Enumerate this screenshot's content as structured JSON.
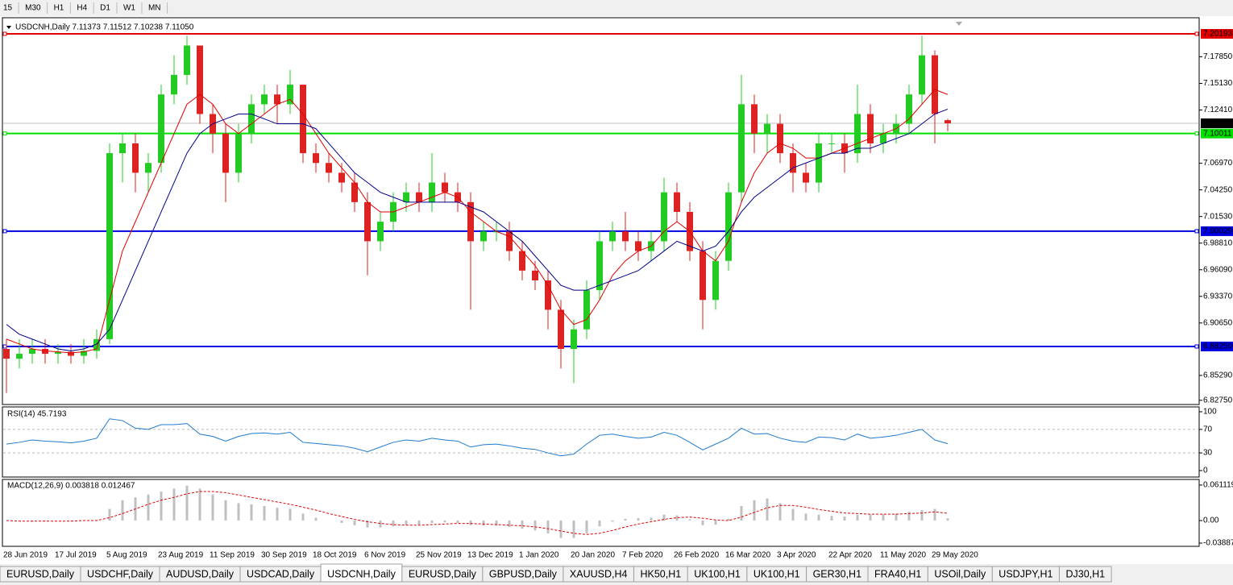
{
  "toolbar": {
    "timeframes": [
      "15",
      "M30",
      "H1",
      "H4",
      "D1",
      "W1",
      "MN"
    ]
  },
  "chart_data": [
    {
      "type": "candlestick",
      "title": "USDCNH,Daily  7.11373 7.11512 7.10238 7.11050",
      "categories": [
        "28 Jun 2019",
        null,
        null,
        null,
        "17 Jul 2019",
        null,
        null,
        null,
        "5 Aug 2019",
        null,
        null,
        null,
        "23 Aug 2019",
        null,
        null,
        null,
        "11 Sep 2019",
        null,
        null,
        null,
        "30 Sep 2019",
        null,
        null,
        null,
        "18 Oct 2019",
        null,
        null,
        null,
        "6 Nov 2019",
        null,
        null,
        null,
        "25 Nov 2019",
        null,
        null,
        null,
        "13 Dec 2019",
        null,
        null,
        null,
        "1 Jan 2020",
        null,
        null,
        null,
        "20 Jan 2020",
        null,
        null,
        null,
        "7 Feb 2020",
        null,
        null,
        null,
        "26 Feb 2020",
        null,
        null,
        null,
        "16 Mar 2020",
        null,
        null,
        null,
        "3 Apr 2020",
        null,
        null,
        null,
        "22 Apr 2020",
        null,
        null,
        null,
        "11 May 2020",
        null,
        null,
        null,
        "29 May 2020",
        null
      ],
      "open": [
        6.88,
        6.87,
        6.875,
        6.88,
        6.875,
        6.877,
        6.873,
        6.878,
        6.89,
        7.08,
        7.09,
        7.06,
        7.07,
        7.14,
        7.16,
        7.19,
        7.12,
        7.1,
        7.06,
        7.1,
        7.13,
        7.14,
        7.13,
        7.15,
        7.08,
        7.07,
        7.06,
        7.05,
        7.03,
        6.99,
        7.01,
        7.03,
        7.04,
        7.03,
        7.05,
        7.04,
        7.03,
        6.99,
        7.0,
        7.0,
        6.98,
        6.96,
        6.95,
        6.92,
        6.88,
        6.9,
        6.94,
        6.99,
        7.0,
        6.99,
        6.98,
        6.99,
        7.04,
        7.02,
        6.98,
        6.93,
        6.97,
        7.04,
        7.13,
        7.1,
        7.11,
        7.08,
        7.06,
        7.05,
        7.09,
        7.09,
        7.08,
        7.12,
        7.09,
        7.1,
        7.11,
        7.14,
        7.18,
        7.11373
      ],
      "high": [
        6.89,
        6.89,
        6.89,
        6.89,
        6.885,
        6.885,
        6.89,
        6.9,
        7.09,
        7.1,
        7.1,
        7.08,
        7.15,
        7.18,
        7.2,
        7.19,
        7.13,
        7.11,
        7.11,
        7.14,
        7.15,
        7.15,
        7.165,
        7.15,
        7.09,
        7.08,
        7.07,
        7.06,
        7.04,
        7.02,
        7.04,
        7.05,
        7.05,
        7.08,
        7.06,
        7.05,
        7.04,
        7.01,
        7.01,
        7.01,
        6.99,
        6.97,
        6.96,
        6.93,
        6.91,
        6.95,
        7.0,
        7.01,
        7.02,
        7.0,
        7.0,
        7.055,
        7.05,
        7.03,
        6.99,
        6.98,
        7.05,
        7.16,
        7.14,
        7.12,
        7.12,
        7.09,
        7.07,
        7.1,
        7.1,
        7.1,
        7.15,
        7.13,
        7.11,
        7.12,
        7.15,
        7.2,
        7.185,
        7.11512
      ],
      "low": [
        6.835,
        6.86,
        6.865,
        6.865,
        6.865,
        6.865,
        6.865,
        6.87,
        6.885,
        7.05,
        7.04,
        7.04,
        7.06,
        7.13,
        7.15,
        7.11,
        7.08,
        7.03,
        7.05,
        7.09,
        7.12,
        7.11,
        7.12,
        7.07,
        7.06,
        7.05,
        7.04,
        7.02,
        6.955,
        6.98,
        7.0,
        7.02,
        7.02,
        7.02,
        7.03,
        7.02,
        6.92,
        6.98,
        6.99,
        6.97,
        6.95,
        6.94,
        6.9,
        6.86,
        6.845,
        6.89,
        6.93,
        6.98,
        6.98,
        6.97,
        6.97,
        6.98,
        7.01,
        6.97,
        6.9,
        6.92,
        6.96,
        7.03,
        7.08,
        7.08,
        7.07,
        7.04,
        7.04,
        7.04,
        7.08,
        7.06,
        7.07,
        7.08,
        7.08,
        7.09,
        7.1,
        7.13,
        7.09,
        7.10238
      ],
      "close": [
        6.87,
        6.875,
        6.88,
        6.875,
        6.877,
        6.873,
        6.878,
        6.89,
        7.08,
        7.09,
        7.06,
        7.07,
        7.14,
        7.16,
        7.19,
        7.12,
        7.1,
        7.06,
        7.1,
        7.13,
        7.14,
        7.13,
        7.15,
        7.08,
        7.07,
        7.06,
        7.05,
        7.03,
        6.99,
        7.01,
        7.03,
        7.04,
        7.03,
        7.05,
        7.04,
        7.03,
        6.99,
        7.0,
        7.0,
        6.98,
        6.96,
        6.95,
        6.92,
        6.88,
        6.9,
        6.94,
        6.99,
        7.0,
        6.99,
        6.98,
        6.99,
        7.04,
        7.02,
        6.98,
        6.93,
        6.97,
        7.04,
        7.13,
        7.1,
        7.11,
        7.08,
        7.06,
        7.05,
        7.09,
        7.09,
        7.08,
        7.12,
        7.09,
        7.1,
        7.11,
        7.14,
        7.18,
        7.12,
        7.1105
      ],
      "up_color": "#22cc22",
      "down_color": "#dd2222",
      "overlays": [
        {
          "color": "#e00000",
          "values": [
            6.89,
            6.885,
            6.88,
            6.878,
            6.877,
            6.876,
            6.877,
            6.88,
            6.93,
            6.98,
            7.01,
            7.04,
            7.07,
            7.1,
            7.13,
            7.14,
            7.13,
            7.11,
            7.1,
            7.11,
            7.12,
            7.13,
            7.135,
            7.12,
            7.1,
            7.08,
            7.065,
            7.05,
            7.03,
            7.02,
            7.02,
            7.025,
            7.03,
            7.035,
            7.04,
            7.035,
            7.02,
            7.01,
            7.0,
            6.995,
            6.98,
            6.965,
            6.945,
            6.92,
            6.905,
            6.91,
            6.93,
            6.955,
            6.97,
            6.98,
            6.985,
            7.0,
            7.01,
            7.0,
            6.98,
            6.97,
            6.99,
            7.03,
            7.06,
            7.08,
            7.09,
            7.085,
            7.075,
            7.075,
            7.08,
            7.085,
            7.09,
            7.095,
            7.1,
            7.105,
            7.115,
            7.13,
            7.145,
            7.14
          ]
        },
        {
          "color": "#00008b",
          "values": [
            6.905,
            6.895,
            6.89,
            6.885,
            6.88,
            6.878,
            6.88,
            6.885,
            6.9,
            6.93,
            6.96,
            6.99,
            7.02,
            7.05,
            7.08,
            7.1,
            7.11,
            7.115,
            7.12,
            7.12,
            7.115,
            7.11,
            7.11,
            7.11,
            7.105,
            7.09,
            7.075,
            7.06,
            7.05,
            7.04,
            7.035,
            7.03,
            7.03,
            7.03,
            7.03,
            7.03,
            7.025,
            7.02,
            7.01,
            7.0,
            6.99,
            6.975,
            6.96,
            6.945,
            6.94,
            6.94,
            6.945,
            6.95,
            6.955,
            6.96,
            6.97,
            6.98,
            6.99,
            6.985,
            6.98,
            6.985,
            7.0,
            7.02,
            7.035,
            7.045,
            7.055,
            7.065,
            7.07,
            7.075,
            7.08,
            7.08,
            7.085,
            7.085,
            7.09,
            7.095,
            7.1,
            7.11,
            7.12,
            7.125
          ]
        }
      ],
      "ylim": [
        6.8232,
        7.2184
      ],
      "yticks": [
        {
          "value": 7.1785,
          "label": "7.17850"
        },
        {
          "value": 7.1513,
          "label": "7.15130"
        },
        {
          "value": 7.1241,
          "label": "7.12410"
        },
        {
          "value": 7.0697,
          "label": "7.06970"
        },
        {
          "value": 7.0425,
          "label": "7.04250"
        },
        {
          "value": 7.0153,
          "label": "7.01530"
        },
        {
          "value": 6.9881,
          "label": "6.98810"
        },
        {
          "value": 6.9609,
          "label": "6.96090"
        },
        {
          "value": 6.9337,
          "label": "6.93370"
        },
        {
          "value": 6.9065,
          "label": "6.90650"
        },
        {
          "value": 6.8529,
          "label": "6.85290"
        },
        {
          "value": 6.8275,
          "label": "6.82750"
        }
      ],
      "current": {
        "value": 7.1105,
        "label": "7.11050"
      },
      "levels": [
        {
          "value": 7.20193,
          "label": "7.20193",
          "color": "#e00000"
        },
        {
          "value": 7.10011,
          "label": "7.10011",
          "color": "#00e000"
        },
        {
          "value": 7.00029,
          "label": "7.00029",
          "color": "#0000e0"
        },
        {
          "value": 6.8825,
          "label": "6.88250",
          "color": "#0000e0"
        }
      ]
    },
    {
      "type": "line",
      "title": "RSI(14) 45.7193",
      "color": "#1e7bd0",
      "values": [
        45,
        48,
        52,
        50,
        49,
        47,
        50,
        55,
        88,
        85,
        72,
        70,
        78,
        78,
        80,
        62,
        58,
        50,
        58,
        63,
        64,
        62,
        65,
        48,
        46,
        44,
        42,
        38,
        32,
        40,
        48,
        52,
        50,
        55,
        52,
        50,
        40,
        44,
        45,
        42,
        38,
        36,
        30,
        25,
        28,
        45,
        60,
        62,
        58,
        55,
        57,
        65,
        60,
        48,
        35,
        45,
        55,
        72,
        62,
        63,
        55,
        50,
        48,
        57,
        56,
        52,
        62,
        55,
        57,
        60,
        65,
        70,
        52,
        45.7193
      ],
      "ylim": [
        -11,
        108.2
      ],
      "yticks": [
        100,
        70,
        30,
        0
      ]
    },
    {
      "type": "macd",
      "title": "MACD(12,26,9) 0.003818 0.012467",
      "color": "#c0c0c0",
      "signal_color": "#e00000",
      "values": [
        0.0,
        -0.001,
        -0.002,
        -0.001,
        0.0,
        -0.001,
        0.0,
        0.001,
        0.02,
        0.035,
        0.04,
        0.045,
        0.05,
        0.055,
        0.06,
        0.055,
        0.045,
        0.035,
        0.03,
        0.028,
        0.025,
        0.022,
        0.02,
        0.012,
        0.005,
        0.0,
        -0.004,
        -0.008,
        -0.012,
        -0.012,
        -0.01,
        -0.008,
        -0.007,
        -0.004,
        -0.003,
        -0.004,
        -0.008,
        -0.009,
        -0.009,
        -0.011,
        -0.014,
        -0.017,
        -0.022,
        -0.03,
        -0.03,
        -0.022,
        -0.01,
        -0.002,
        0.003,
        0.004,
        0.005,
        0.01,
        0.009,
        0.002,
        -0.008,
        -0.007,
        0.003,
        0.025,
        0.035,
        0.038,
        0.03,
        0.02,
        0.012,
        0.01,
        0.008,
        0.007,
        0.01,
        0.01,
        0.011,
        0.012,
        0.015,
        0.018,
        0.02,
        0.003818
      ],
      "signal": [
        0.0,
        -0.001,
        -0.001,
        -0.001,
        -0.001,
        -0.001,
        0.0,
        0.0,
        0.005,
        0.012,
        0.02,
        0.028,
        0.035,
        0.04,
        0.046,
        0.05,
        0.05,
        0.048,
        0.044,
        0.04,
        0.036,
        0.032,
        0.028,
        0.023,
        0.018,
        0.012,
        0.007,
        0.002,
        -0.002,
        -0.005,
        -0.007,
        -0.008,
        -0.008,
        -0.007,
        -0.006,
        -0.005,
        -0.005,
        -0.006,
        -0.007,
        -0.008,
        -0.009,
        -0.011,
        -0.014,
        -0.018,
        -0.022,
        -0.024,
        -0.022,
        -0.017,
        -0.011,
        -0.006,
        -0.002,
        0.002,
        0.005,
        0.006,
        0.004,
        0.001,
        0.0,
        0.006,
        0.014,
        0.022,
        0.026,
        0.026,
        0.023,
        0.019,
        0.016,
        0.013,
        0.012,
        0.011,
        0.011,
        0.011,
        0.012,
        0.013,
        0.015,
        0.012467
      ],
      "ylim": [
        -0.0444,
        0.0708
      ],
      "yticks": [
        {
          "value": 0.061119,
          "label": "0.061119"
        },
        {
          "value": 0,
          "label": "0.00"
        },
        -0.03887
      ]
    }
  ],
  "tabs": {
    "items": [
      "EURUSD,Daily",
      "USDCHF,Daily",
      "AUDUSD,Daily",
      "USDCAD,Daily",
      "USDCNH,Daily",
      "EURUSD,Daily",
      "GBPUSD,Daily",
      "XAUUSD,H4",
      "HK50,H1",
      "UK100,H1",
      "UK100,H1",
      "GER30,H1",
      "FRA40,H1",
      "USOil,Daily",
      "USDJPY,H1",
      "DJ30,H1"
    ],
    "active": 4
  }
}
